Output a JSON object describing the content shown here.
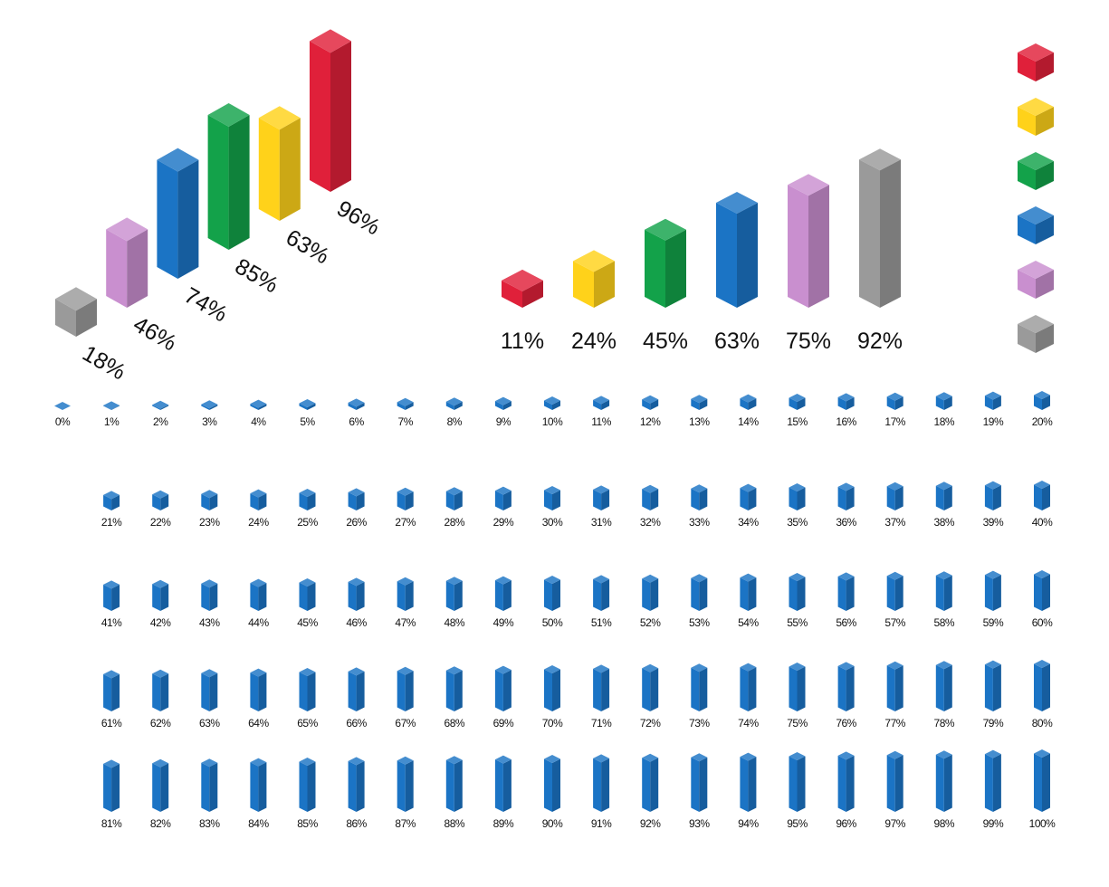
{
  "chart_data": [
    {
      "type": "bar3d",
      "layout": "diagonal",
      "values": [
        18,
        46,
        74,
        85,
        63,
        96
      ],
      "value_labels": [
        "18%",
        "46%",
        "74%",
        "85%",
        "63%",
        "96%"
      ],
      "colors": [
        "#9a9a9a",
        "#c98fcf",
        "#1b74c5",
        "#13a24a",
        "#ffd21a",
        "#e0203a"
      ]
    },
    {
      "type": "bar3d",
      "layout": "row",
      "values": [
        11,
        24,
        45,
        63,
        75,
        92
      ],
      "value_labels": [
        "11%",
        "24%",
        "45%",
        "63%",
        "75%",
        "92%"
      ],
      "colors": [
        "#e0203a",
        "#ffd21a",
        "#13a24a",
        "#1b74c5",
        "#c98fcf",
        "#9a9a9a"
      ]
    },
    {
      "type": "bar3d",
      "layout": "grid",
      "color": "#1b74c5",
      "values": [
        0,
        1,
        2,
        3,
        4,
        5,
        6,
        7,
        8,
        9,
        10,
        11,
        12,
        13,
        14,
        15,
        16,
        17,
        18,
        19,
        20,
        21,
        22,
        23,
        24,
        25,
        26,
        27,
        28,
        29,
        30,
        31,
        32,
        33,
        34,
        35,
        36,
        37,
        38,
        39,
        40,
        41,
        42,
        43,
        44,
        45,
        46,
        47,
        48,
        49,
        50,
        51,
        52,
        53,
        54,
        55,
        56,
        57,
        58,
        59,
        60,
        61,
        62,
        63,
        64,
        65,
        66,
        67,
        68,
        69,
        70,
        71,
        72,
        73,
        74,
        75,
        76,
        77,
        78,
        79,
        80,
        81,
        82,
        83,
        84,
        85,
        86,
        87,
        88,
        89,
        90,
        91,
        92,
        93,
        94,
        95,
        96,
        97,
        98,
        99,
        100
      ],
      "value_labels": [
        "0%",
        "1%",
        "2%",
        "3%",
        "4%",
        "5%",
        "6%",
        "7%",
        "8%",
        "9%",
        "10%",
        "11%",
        "12%",
        "13%",
        "14%",
        "15%",
        "16%",
        "17%",
        "18%",
        "19%",
        "20%",
        "21%",
        "22%",
        "23%",
        "24%",
        "25%",
        "26%",
        "27%",
        "28%",
        "29%",
        "30%",
        "31%",
        "32%",
        "33%",
        "34%",
        "35%",
        "36%",
        "37%",
        "38%",
        "39%",
        "40%",
        "41%",
        "42%",
        "43%",
        "44%",
        "45%",
        "46%",
        "47%",
        "48%",
        "49%",
        "50%",
        "51%",
        "52%",
        "53%",
        "54%",
        "55%",
        "56%",
        "57%",
        "58%",
        "59%",
        "60%",
        "61%",
        "62%",
        "63%",
        "64%",
        "65%",
        "66%",
        "67%",
        "68%",
        "69%",
        "70%",
        "71%",
        "72%",
        "73%",
        "74%",
        "75%",
        "76%",
        "77%",
        "78%",
        "79%",
        "80%",
        "81%",
        "82%",
        "83%",
        "84%",
        "85%",
        "86%",
        "87%",
        "88%",
        "89%",
        "90%",
        "91%",
        "92%",
        "93%",
        "94%",
        "95%",
        "96%",
        "97%",
        "98%",
        "99%",
        "100%"
      ]
    }
  ]
}
